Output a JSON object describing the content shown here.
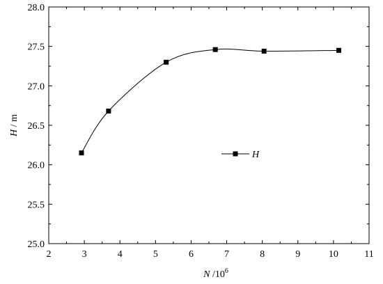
{
  "chart_data": {
    "type": "line",
    "x_label": {
      "var": "N",
      "unit": " /10",
      "exp": "6"
    },
    "y_label": {
      "var": "H",
      "unit": " / m"
    },
    "xlim": [
      2,
      11
    ],
    "ylim": [
      25.0,
      28.0
    ],
    "x_ticks": [
      2,
      3,
      4,
      5,
      6,
      7,
      8,
      9,
      10,
      11
    ],
    "y_ticks": [
      "25.0",
      "25.5",
      "26.0",
      "26.5",
      "27.0",
      "27.5",
      "28.0"
    ],
    "series": [
      {
        "name": "H",
        "marker": "square",
        "color": "#000000",
        "x": [
          2.92,
          3.68,
          5.3,
          6.68,
          8.05,
          10.15
        ],
        "y": [
          26.15,
          26.68,
          27.3,
          27.46,
          27.44,
          27.45
        ]
      }
    ],
    "legend": {
      "position": "center",
      "label": "H"
    },
    "grid": false
  }
}
